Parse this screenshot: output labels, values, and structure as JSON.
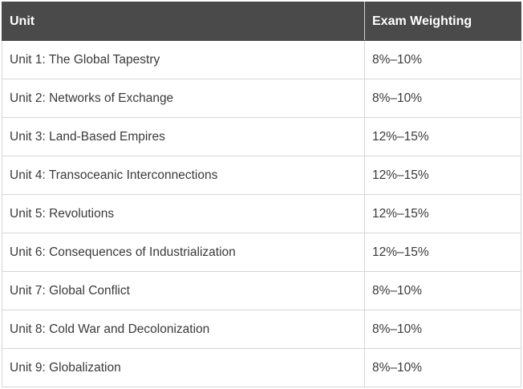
{
  "table": {
    "headers": [
      "Unit",
      "Exam Weighting"
    ],
    "rows": [
      {
        "unit": "Unit 1: The Global Tapestry",
        "weighting": "8%–10%"
      },
      {
        "unit": "Unit 2: Networks of Exchange",
        "weighting": "8%–10%"
      },
      {
        "unit": "Unit 3: Land-Based Empires",
        "weighting": "12%–15%"
      },
      {
        "unit": "Unit 4: Transoceanic Interconnections",
        "weighting": "12%–15%"
      },
      {
        "unit": "Unit 5: Revolutions",
        "weighting": "12%–15%"
      },
      {
        "unit": "Unit 6: Consequences of Industrialization",
        "weighting": "12%–15%"
      },
      {
        "unit": "Unit 7: Global Conflict",
        "weighting": "8%–10%"
      },
      {
        "unit": "Unit 8: Cold War and Decolonization",
        "weighting": "8%–10%"
      },
      {
        "unit": "Unit 9: Globalization",
        "weighting": "8%–10%"
      }
    ]
  },
  "colors": {
    "header_bg": "#4a4a4a",
    "header_text": "#ffffff",
    "cell_text": "#3a3a3a",
    "grid_line": "#d6d6d6"
  }
}
